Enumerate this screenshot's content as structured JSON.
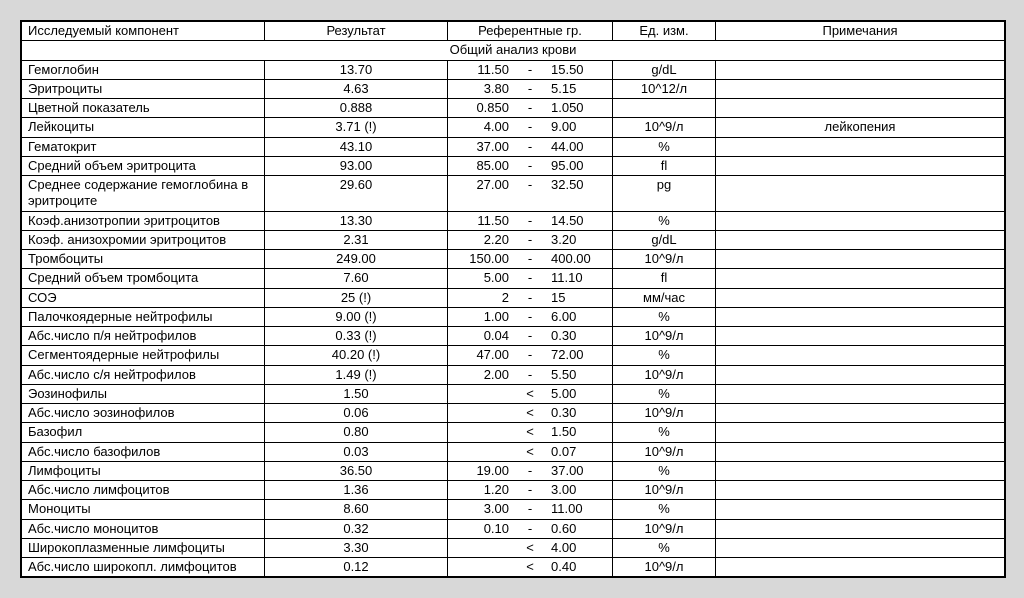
{
  "headers": {
    "component": "Исследуемый компонент",
    "result": "Результат",
    "reference": "Референтные гр.",
    "unit": "Ед. изм.",
    "note": "Примечания"
  },
  "section_title": "Общий анализ крови",
  "dash": "-",
  "lt": "<",
  "rows": [
    {
      "comp": "Гемоглобин",
      "res": "13.70",
      "lo": "11.50",
      "sep": "-",
      "hi": "15.50",
      "unit": "g/dL",
      "note": ""
    },
    {
      "comp": "Эритроциты",
      "res": "4.63",
      "lo": "3.80",
      "sep": "-",
      "hi": "5.15",
      "unit": "10^12/л",
      "note": ""
    },
    {
      "comp": "Цветной показатель",
      "res": "0.888",
      "lo": "0.850",
      "sep": "-",
      "hi": "1.050",
      "unit": "",
      "note": ""
    },
    {
      "comp": "Лейкоциты",
      "res": "3.71 (!)",
      "lo": "4.00",
      "sep": "-",
      "hi": "9.00",
      "unit": "10^9/л",
      "note": "лейкопения"
    },
    {
      "comp": "Гематокрит",
      "res": "43.10",
      "lo": "37.00",
      "sep": "-",
      "hi": "44.00",
      "unit": "%",
      "note": ""
    },
    {
      "comp": "Средний объем эритроцита",
      "res": "93.00",
      "lo": "85.00",
      "sep": "-",
      "hi": "95.00",
      "unit": "fl",
      "note": ""
    },
    {
      "comp": "Среднее содержание гемоглобина в эритроците",
      "res": "29.60",
      "lo": "27.00",
      "sep": "-",
      "hi": "32.50",
      "unit": "pg",
      "note": ""
    },
    {
      "comp": "Коэф.анизотропии эритроцитов",
      "res": "13.30",
      "lo": "11.50",
      "sep": "-",
      "hi": "14.50",
      "unit": "%",
      "note": ""
    },
    {
      "comp": "Коэф. анизохромии эритроцитов",
      "res": "2.31",
      "lo": "2.20",
      "sep": "-",
      "hi": "3.20",
      "unit": "g/dL",
      "note": ""
    },
    {
      "comp": "Тромбоциты",
      "res": "249.00",
      "lo": "150.00",
      "sep": "-",
      "hi": "400.00",
      "unit": "10^9/л",
      "note": ""
    },
    {
      "comp": "Средний объем тромбоцита",
      "res": "7.60",
      "lo": "5.00",
      "sep": "-",
      "hi": "11.10",
      "unit": "fl",
      "note": ""
    },
    {
      "comp": "СОЭ",
      "res": "25 (!)",
      "lo": "2",
      "sep": "-",
      "hi": "15",
      "unit": "мм/час",
      "note": ""
    },
    {
      "comp": "Палочкоядерные нейтрофилы",
      "res": "9.00 (!)",
      "lo": "1.00",
      "sep": "-",
      "hi": "6.00",
      "unit": "%",
      "note": ""
    },
    {
      "comp": "Абс.число п/я нейтрофилов",
      "res": "0.33 (!)",
      "lo": "0.04",
      "sep": "-",
      "hi": "0.30",
      "unit": "10^9/л",
      "note": ""
    },
    {
      "comp": "Сегментоядерные нейтрофилы",
      "res": "40.20 (!)",
      "lo": "47.00",
      "sep": "-",
      "hi": "72.00",
      "unit": "%",
      "note": ""
    },
    {
      "comp": "Абс.число с/я нейтрофилов",
      "res": "1.49 (!)",
      "lo": "2.00",
      "sep": "-",
      "hi": "5.50",
      "unit": "10^9/л",
      "note": ""
    },
    {
      "comp": "Эозинофилы",
      "res": "1.50",
      "lo": "",
      "sep": "<",
      "hi": "5.00",
      "unit": "%",
      "note": ""
    },
    {
      "comp": "Абс.число эозинофилов",
      "res": "0.06",
      "lo": "",
      "sep": "<",
      "hi": "0.30",
      "unit": "10^9/л",
      "note": ""
    },
    {
      "comp": "Базофил",
      "res": "0.80",
      "lo": "",
      "sep": "<",
      "hi": "1.50",
      "unit": "%",
      "note": ""
    },
    {
      "comp": "Абс.число базофилов",
      "res": "0.03",
      "lo": "",
      "sep": "<",
      "hi": "0.07",
      "unit": "10^9/л",
      "note": ""
    },
    {
      "comp": "Лимфоциты",
      "res": "36.50",
      "lo": "19.00",
      "sep": "-",
      "hi": "37.00",
      "unit": "%",
      "note": ""
    },
    {
      "comp": "Абс.число лимфоцитов",
      "res": "1.36",
      "lo": "1.20",
      "sep": "-",
      "hi": "3.00",
      "unit": "10^9/л",
      "note": ""
    },
    {
      "comp": "Моноциты",
      "res": "8.60",
      "lo": "3.00",
      "sep": "-",
      "hi": "11.00",
      "unit": "%",
      "note": ""
    },
    {
      "comp": "Абс.число моноцитов",
      "res": "0.32",
      "lo": "0.10",
      "sep": "-",
      "hi": "0.60",
      "unit": "10^9/л",
      "note": ""
    },
    {
      "comp": "Широкоплазменные лимфоциты",
      "res": "3.30",
      "lo": "",
      "sep": "<",
      "hi": "4.00",
      "unit": "%",
      "note": ""
    },
    {
      "comp": "Абс.число широкопл. лимфоцитов",
      "res": "0.12",
      "lo": "",
      "sep": "<",
      "hi": "0.40",
      "unit": "10^9/л",
      "note": ""
    }
  ]
}
